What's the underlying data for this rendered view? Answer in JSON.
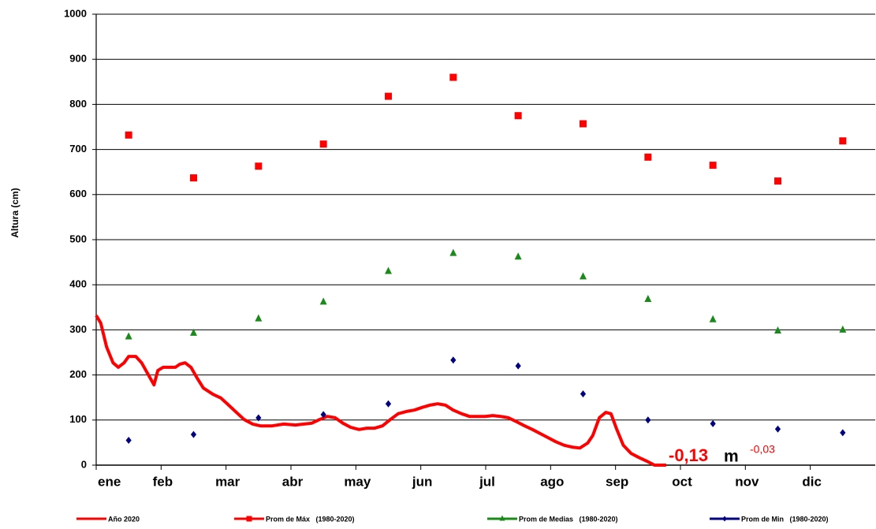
{
  "chart_data": {
    "type": "line",
    "y_label": "Altura (cm)",
    "xlim": [
      0,
      12
    ],
    "xticks": [
      {
        "value": 0,
        "label": "ene"
      },
      {
        "value": 1,
        "label": "feb"
      },
      {
        "value": 2,
        "label": "mar"
      },
      {
        "value": 3,
        "label": "abr"
      },
      {
        "value": 4,
        "label": "may"
      },
      {
        "value": 5,
        "label": "jun"
      },
      {
        "value": 6,
        "label": "jul"
      },
      {
        "value": 7,
        "label": "ago"
      },
      {
        "value": 8,
        "label": "sep"
      },
      {
        "value": 9,
        "label": "oct"
      },
      {
        "value": 10,
        "label": "nov"
      },
      {
        "value": 11,
        "label": "dic"
      }
    ],
    "ylim": [
      0,
      1000
    ],
    "yticks": [
      0,
      100,
      200,
      300,
      400,
      500,
      600,
      700,
      800,
      900,
      1000
    ],
    "grid": true,
    "series": [
      {
        "name": "Año 2020",
        "color": "#ff0000",
        "style": "line",
        "x": [
          0,
          0.07,
          0.16,
          0.26,
          0.34,
          0.43,
          0.5,
          0.61,
          0.7,
          0.8,
          0.89,
          0.95,
          1.03,
          1.13,
          1.22,
          1.29,
          1.37,
          1.46,
          1.56,
          1.65,
          1.8,
          1.92,
          2.04,
          2.16,
          2.28,
          2.41,
          2.53,
          2.71,
          2.89,
          3.07,
          3.2,
          3.32,
          3.44,
          3.56,
          3.68,
          3.8,
          3.92,
          4.05,
          4.17,
          4.29,
          4.41,
          4.53,
          4.65,
          4.78,
          4.9,
          5.02,
          5.14,
          5.26,
          5.38,
          5.5,
          5.63,
          5.75,
          5.87,
          5.99,
          6.11,
          6.23,
          6.35,
          6.48,
          6.6,
          6.72,
          6.84,
          6.96,
          7.08,
          7.21,
          7.33,
          7.45,
          7.57,
          7.65,
          7.75,
          7.85,
          7.93,
          8.02,
          8.12,
          8.24,
          8.36,
          8.48,
          8.6,
          8.78
        ],
        "values": [
          332,
          315,
          262,
          227,
          217,
          227,
          241,
          241,
          227,
          201,
          178,
          210,
          217,
          217,
          217,
          224,
          227,
          217,
          192,
          171,
          157,
          149,
          133,
          117,
          101,
          91,
          87,
          87,
          91,
          89,
          91,
          93,
          101,
          108,
          105,
          93,
          84,
          79,
          82,
          82,
          87,
          101,
          114,
          119,
          122,
          128,
          133,
          136,
          133,
          122,
          114,
          108,
          108,
          108,
          110,
          108,
          105,
          96,
          87,
          79,
          70,
          61,
          52,
          44,
          40,
          38,
          49,
          66,
          105,
          117,
          114,
          79,
          44,
          26,
          17,
          9,
          0,
          0
        ]
      },
      {
        "name": "Prom de Máx   (1980-2020)",
        "color": "#ff0000",
        "style": "square",
        "x": [
          0.5,
          1.5,
          2.5,
          3.5,
          4.5,
          5.5,
          6.5,
          7.5,
          8.5,
          9.5,
          10.5,
          11.5
        ],
        "values": [
          732,
          637,
          663,
          712,
          818,
          860,
          775,
          757,
          683,
          665,
          630,
          719
        ]
      },
      {
        "name": "Prom de Medias   (1980-2020)",
        "color": "#1a8a1a",
        "style": "triangle",
        "x": [
          0.5,
          1.5,
          2.5,
          3.5,
          4.5,
          5.5,
          6.5,
          7.5,
          8.5,
          9.5,
          10.5,
          11.5
        ],
        "values": [
          285,
          293,
          325,
          362,
          430,
          470,
          462,
          418,
          368,
          323,
          298,
          300
        ]
      },
      {
        "name": "Prom de Min   (1980-2020)",
        "color": "#000080",
        "style": "diamond",
        "x": [
          0.5,
          1.5,
          2.5,
          3.5,
          4.5,
          5.5,
          6.5,
          7.5,
          8.5,
          9.5,
          10.5,
          11.5
        ],
        "values": [
          55,
          68,
          105,
          112,
          136,
          233,
          220,
          158,
          100,
          92,
          80,
          72
        ]
      }
    ],
    "annotation": {
      "value": "-0,13",
      "unit": "m",
      "note": "-0,03"
    }
  }
}
